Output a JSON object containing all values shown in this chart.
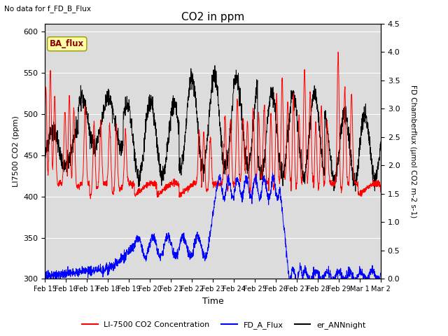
{
  "title": "CO2 in ppm",
  "note_text": "No data for f_FD_B_Flux",
  "ba_flux_label": "BA_flux",
  "xlabel": "Time",
  "ylabel_left": "LI7500 CO2 (ppm)",
  "ylabel_right": "FD Chamberflux (μmol CO2 m-2 s-1)",
  "ylim_left": [
    300,
    610
  ],
  "ylim_right": [
    0.0,
    4.5
  ],
  "yticks_left": [
    300,
    350,
    400,
    450,
    500,
    550,
    600
  ],
  "yticks_right": [
    0.0,
    0.5,
    1.0,
    1.5,
    2.0,
    2.5,
    3.0,
    3.5,
    4.0,
    4.5
  ],
  "color_red": "#FF0000",
  "color_blue": "#0000FF",
  "color_black": "#000000",
  "plot_bg_color": "#DCDCDC",
  "legend_items": [
    {
      "label": "LI-7500 CO2 Concentration",
      "color": "#FF0000"
    },
    {
      "label": "FD_A_Flux",
      "color": "#0000FF"
    },
    {
      "label": "er_ANNnight",
      "color": "#000000"
    }
  ],
  "ba_flux_box_color": "#FFFFAA",
  "ba_flux_text_color": "#8B0000",
  "ba_flux_edge_color": "#999900"
}
